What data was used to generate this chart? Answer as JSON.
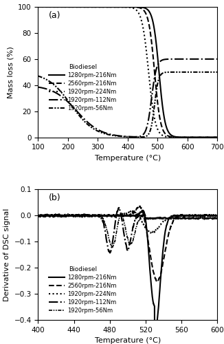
{
  "panel_a": {
    "xlabel": "Temperature (°C)",
    "ylabel": "Mass loss (%)",
    "xlim": [
      100,
      700
    ],
    "ylim": [
      0,
      100
    ],
    "xticks": [
      100,
      200,
      300,
      400,
      500,
      600,
      700
    ],
    "yticks": [
      0,
      20,
      40,
      60,
      80,
      100
    ],
    "label": "(a)",
    "legend_title": "Biodiesel",
    "series": [
      {
        "label": "1280rpm-216Nm",
        "linestyle": "solid",
        "linewidth": 1.5,
        "color": "black"
      },
      {
        "label": "2560rpm-216Nm",
        "linestyle": "dashed",
        "linewidth": 1.5,
        "color": "black"
      },
      {
        "label": "1920rpm-224Nm",
        "linestyle": "dotted",
        "linewidth": 1.5,
        "color": "black"
      },
      {
        "label": "1920rpm-112Nm",
        "linestyle": "dashdot",
        "linewidth": 1.5,
        "color": "black"
      },
      {
        "label": "1920rpm-56Nm",
        "linestyle": "dashdotdot",
        "linewidth": 1.5,
        "color": "black"
      }
    ]
  },
  "panel_b": {
    "xlabel": "Temperature (°C)",
    "ylabel": "Derivative of DSC signal",
    "xlim": [
      400,
      600
    ],
    "ylim": [
      -0.4,
      0.1
    ],
    "xticks": [
      400,
      440,
      480,
      520,
      560,
      600
    ],
    "yticks": [
      -0.4,
      -0.3,
      -0.2,
      -0.1,
      0.0,
      0.1
    ],
    "label": "(b)",
    "legend_title": "Biodiesel",
    "series": [
      {
        "label": "1280rpm-216Nm",
        "linestyle": "solid",
        "linewidth": 1.5,
        "color": "black"
      },
      {
        "label": "2560rpm-216Nm",
        "linestyle": "dashed",
        "linewidth": 1.5,
        "color": "black"
      },
      {
        "label": "1920rpm-224Nm",
        "linestyle": "dotted",
        "linewidth": 1.5,
        "color": "black"
      },
      {
        "label": "1920rpm-112Nm",
        "linestyle": "dashdot",
        "linewidth": 1.5,
        "color": "black"
      },
      {
        "label": "1920rpm-56Nm",
        "linestyle": "dashdotdot",
        "linewidth": 1.2,
        "color": "black"
      }
    ]
  }
}
